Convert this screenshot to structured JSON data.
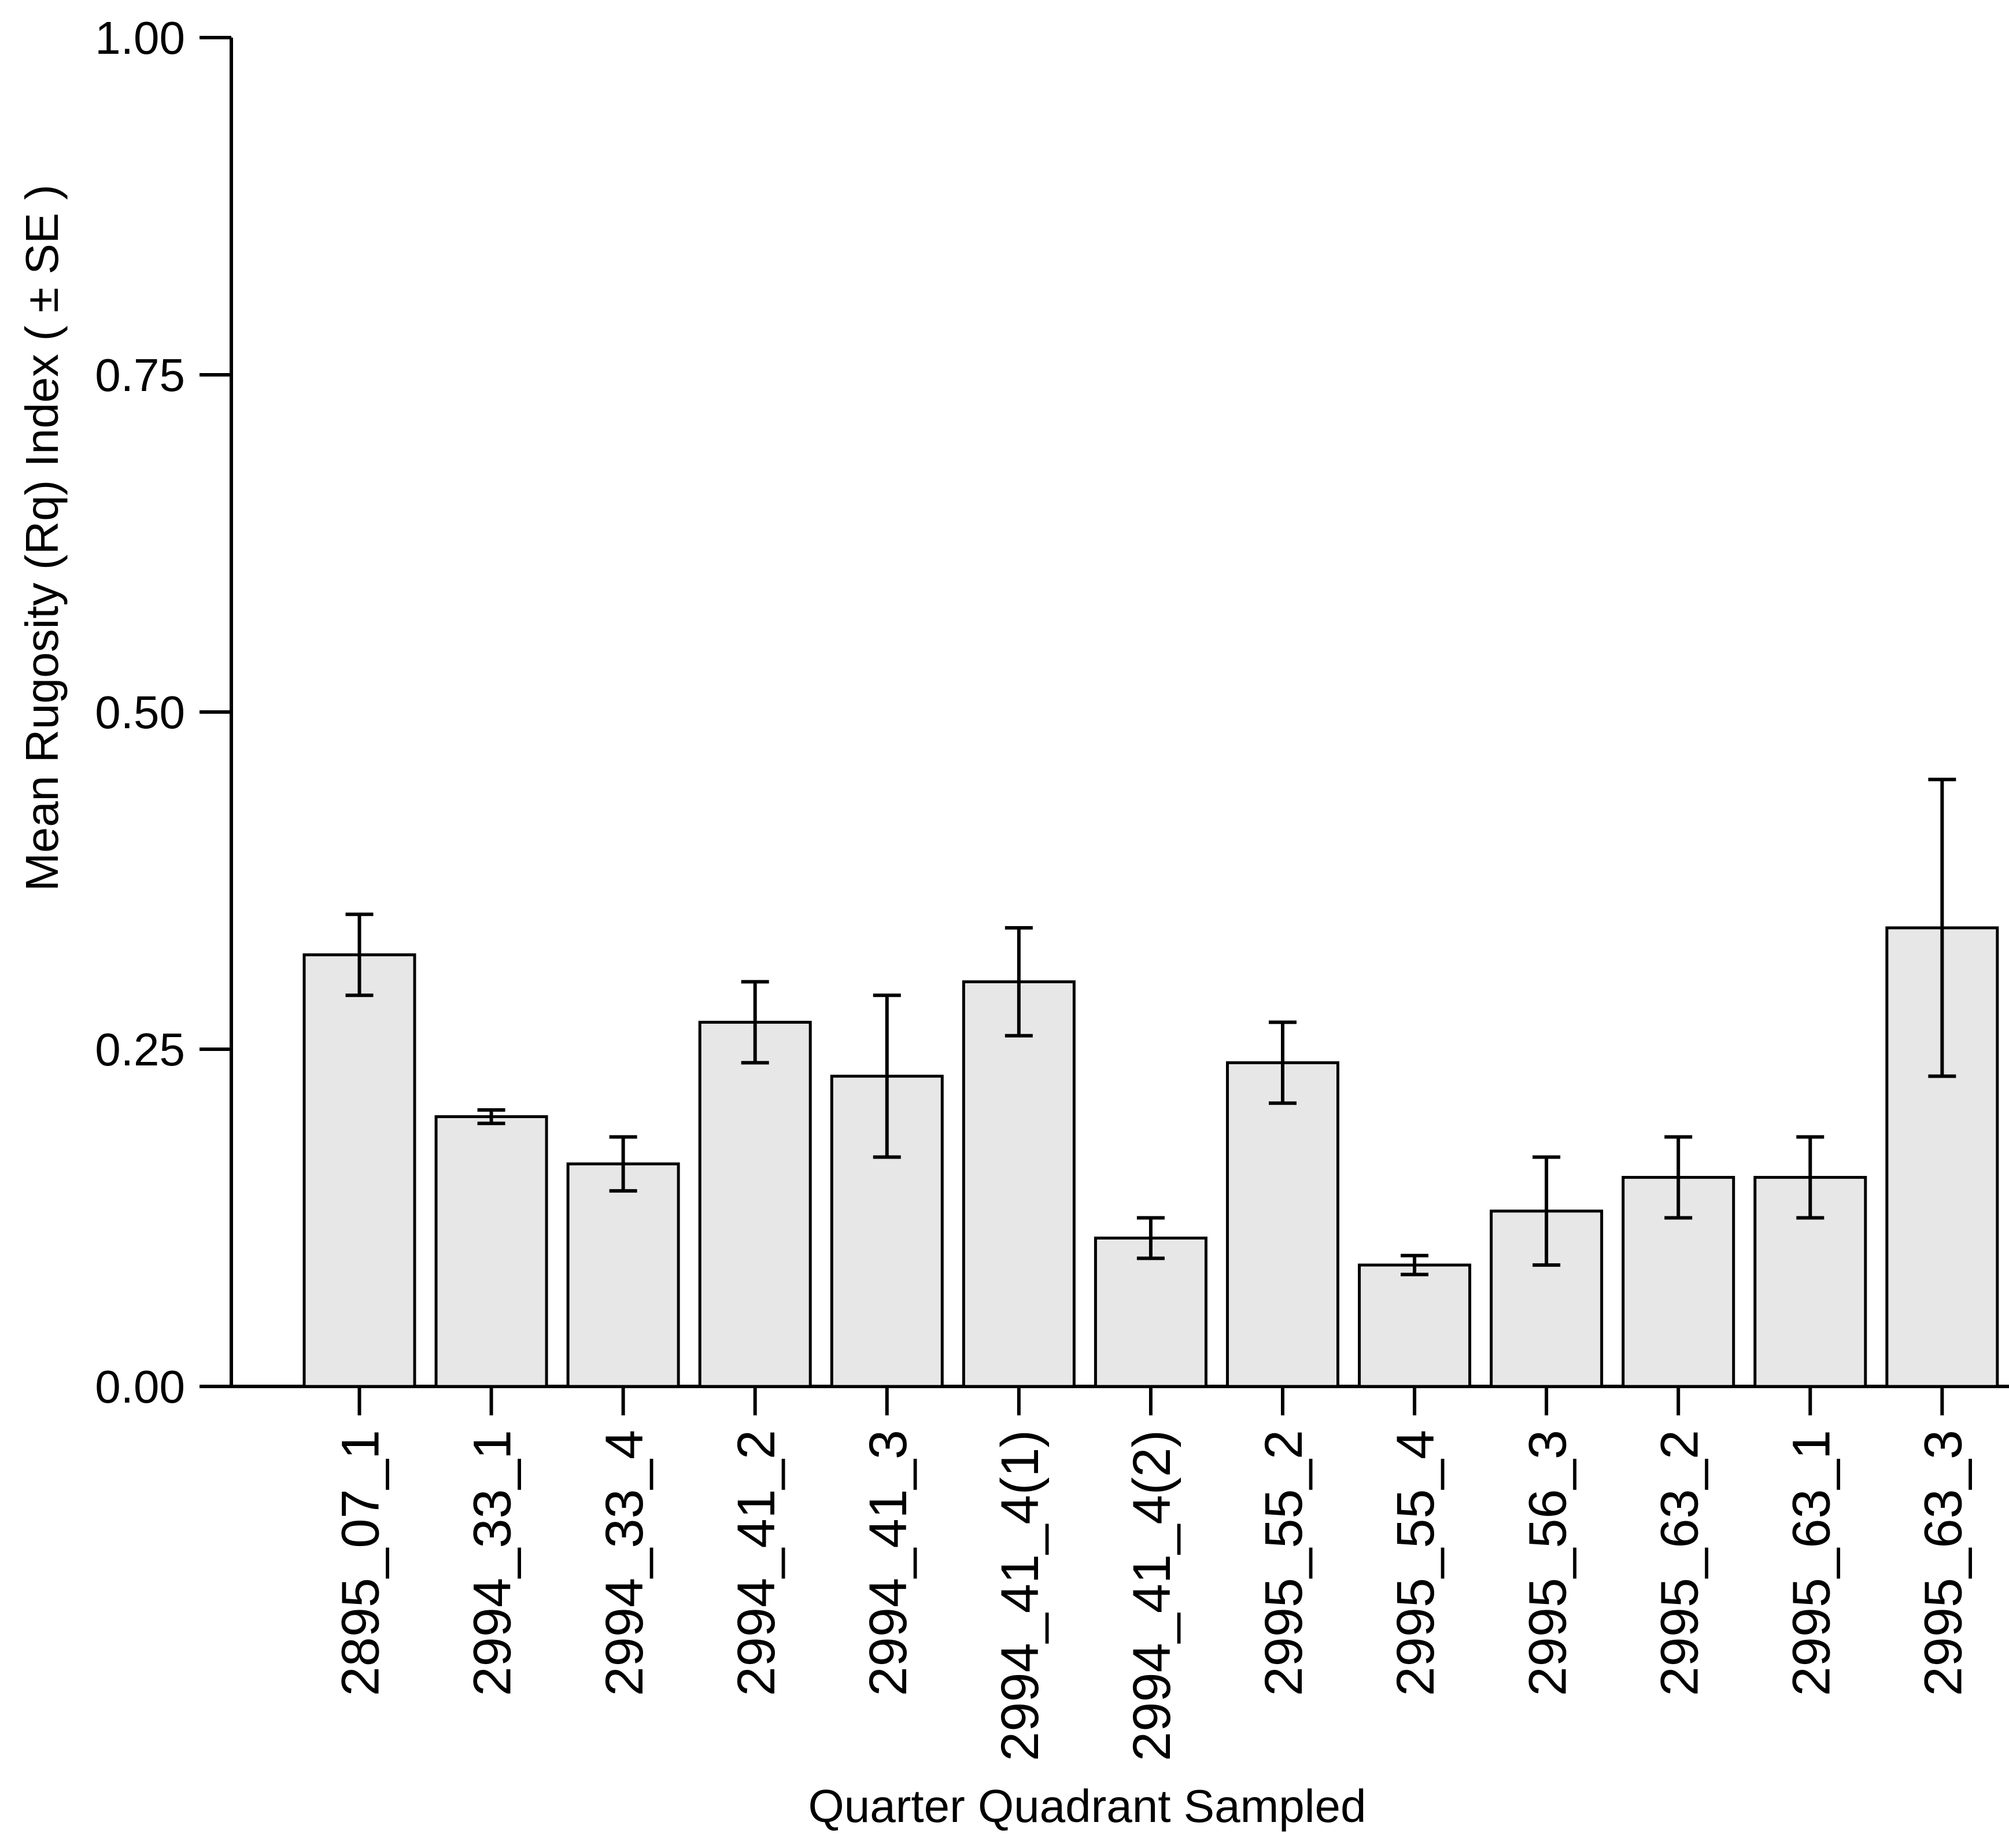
{
  "chart_data": {
    "type": "bar",
    "title": "",
    "xlabel": "Quarter Quadrant Sampled",
    "ylabel": "Mean Rugosity (Rq) Index ( ± SE )",
    "ylim": [
      0,
      1
    ],
    "yticks": [
      0,
      0.25,
      0.5,
      0.75,
      1
    ],
    "ytick_labels": [
      "0.00",
      "0.25",
      "0.50",
      "0.75",
      "1.00"
    ],
    "grid": false,
    "legend": null,
    "error_bar_type": "standard error",
    "categories": [
      "2895_07_1",
      "2994_33_1",
      "2994_33_4",
      "2994_41_2",
      "2994_41_3",
      "2994_41_4(1)",
      "2994_41_4(2)",
      "2995_55_2",
      "2995_55_4",
      "2995_56_3",
      "2995_63_2",
      "2995_63_1",
      "2995_63_3"
    ],
    "values": [
      0.32,
      0.2,
      0.165,
      0.27,
      0.23,
      0.3,
      0.11,
      0.24,
      0.09,
      0.13,
      0.155,
      0.155,
      0.34
    ],
    "error_low": [
      0.29,
      0.195,
      0.145,
      0.24,
      0.17,
      0.26,
      0.095,
      0.21,
      0.083,
      0.09,
      0.125,
      0.125,
      0.23
    ],
    "error_high": [
      0.35,
      0.205,
      0.185,
      0.3,
      0.29,
      0.34,
      0.125,
      0.27,
      0.097,
      0.17,
      0.185,
      0.185,
      0.45
    ],
    "se": [
      0.03,
      0.005,
      0.02,
      0.03,
      0.06,
      0.04,
      0.015,
      0.03,
      0.007,
      0.04,
      0.03,
      0.03,
      0.11
    ],
    "colors": {
      "bar_fill": "#e7e7e7",
      "bar_stroke": "#000000",
      "axis": "#000000",
      "background": "#ffffff"
    }
  }
}
